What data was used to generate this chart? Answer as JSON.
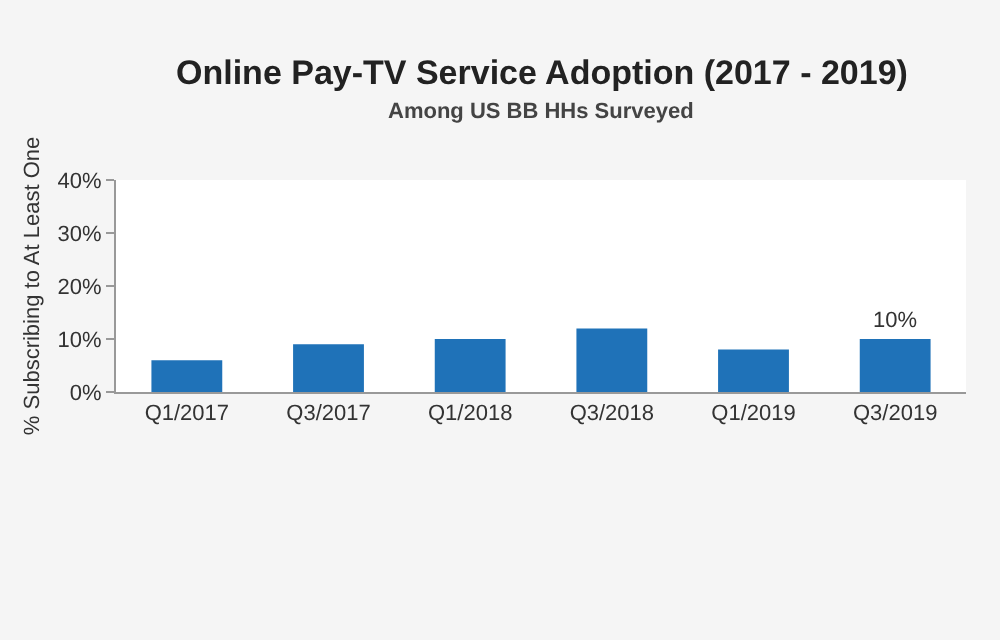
{
  "chart_data": {
    "type": "bar",
    "title": "Online Pay-TV Service Adoption (2017 - 2019)",
    "subtitle": "Among US BB HHs Surveyed",
    "ylabel": "% Subscribing to At Least One",
    "categories": [
      "Q1/2017",
      "Q3/2017",
      "Q1/2018",
      "Q3/2018",
      "Q1/2019",
      "Q3/2019"
    ],
    "values": [
      6,
      9,
      10,
      12,
      8,
      10
    ],
    "value_labels": [
      null,
      null,
      null,
      null,
      null,
      "10%"
    ],
    "color": "#1f72b8",
    "ylim": [
      0,
      40
    ],
    "yticks": [
      {
        "value": 0,
        "label": "0%"
      },
      {
        "value": 10,
        "label": "10%"
      },
      {
        "value": 20,
        "label": "20%"
      },
      {
        "value": 30,
        "label": "30%"
      },
      {
        "value": 40,
        "label": "40%"
      }
    ]
  }
}
